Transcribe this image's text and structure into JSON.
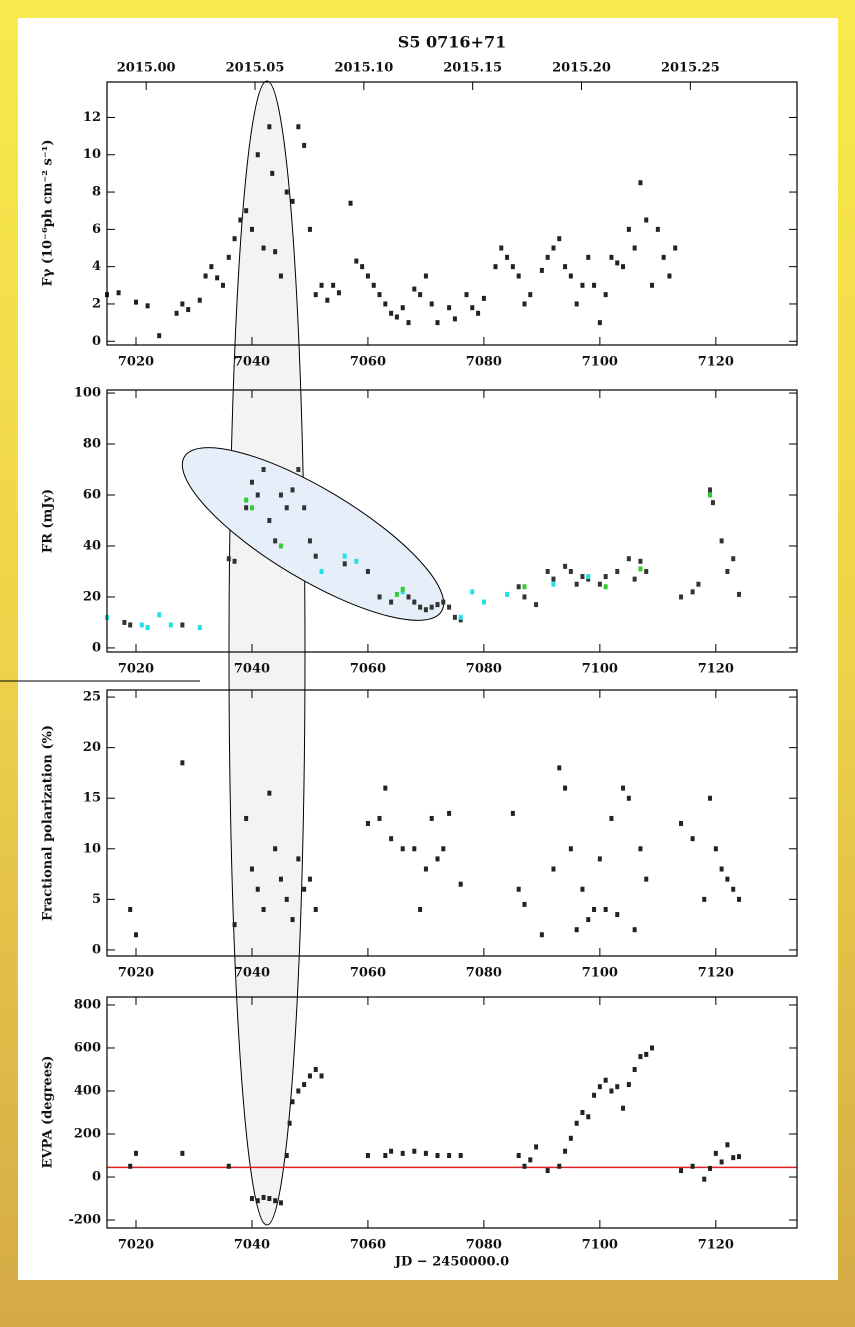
{
  "chart_data": [
    {
      "type": "scatter",
      "title": "S5 0716+71",
      "ylabel": "Fγ (10⁻⁶ph cm⁻² s⁻¹)",
      "xlim": [
        7015,
        7134
      ],
      "ylim": [
        -0.2,
        13.9
      ],
      "xticks": [
        7020,
        7040,
        7060,
        7080,
        7100,
        7120
      ],
      "yticks": [
        0,
        2,
        4,
        6,
        8,
        10,
        12
      ],
      "x2lim": [
        2014.982,
        2015.299
      ],
      "x2ticks": [
        {
          "value": 2015.0,
          "label": "2015.00"
        },
        2015.05,
        {
          "value": 2015.1,
          "label": "2015.10"
        },
        2015.15,
        {
          "value": 2015.2,
          "label": "2015.20"
        },
        2015.25
      ],
      "series": [
        {
          "color": "#222222",
          "x": [
            7015,
            7017,
            7020,
            7022,
            7024,
            7027,
            7028,
            7029,
            7031,
            7032,
            7033,
            7034,
            7035,
            7036,
            7037,
            7038,
            7039,
            7040,
            7041,
            7042,
            7043,
            7043.5,
            7044,
            7045,
            7046,
            7047,
            7048,
            7049,
            7050,
            7051,
            7052,
            7053,
            7054,
            7055,
            7057,
            7058,
            7059,
            7060,
            7061,
            7062,
            7063,
            7064,
            7065,
            7066,
            7067,
            7068,
            7069,
            7070,
            7071,
            7072,
            7074,
            7075,
            7077,
            7078,
            7079,
            7080,
            7082,
            7083,
            7084,
            7085,
            7086,
            7087,
            7088,
            7090,
            7091,
            7092,
            7093,
            7094,
            7095,
            7096,
            7097,
            7098,
            7099,
            7100,
            7101,
            7102,
            7103,
            7104,
            7105,
            7106,
            7107,
            7108,
            7109,
            7110,
            7111,
            7112,
            7113
          ],
          "values": [
            2.5,
            2.6,
            2.1,
            1.9,
            0.3,
            1.5,
            2.0,
            1.7,
            2.2,
            3.5,
            4.0,
            3.4,
            3.0,
            4.5,
            5.5,
            6.5,
            7.0,
            6.0,
            10.0,
            5.0,
            11.5,
            9.0,
            4.8,
            3.5,
            8.0,
            7.5,
            11.5,
            10.5,
            6.0,
            2.5,
            3.0,
            2.2,
            3.0,
            2.6,
            7.4,
            4.3,
            4.0,
            3.5,
            3.0,
            2.5,
            2.0,
            1.5,
            1.3,
            1.8,
            1.0,
            2.8,
            2.5,
            3.5,
            2.0,
            1.0,
            1.8,
            1.2,
            2.5,
            1.8,
            1.5,
            2.3,
            4.0,
            5.0,
            4.5,
            4.0,
            3.5,
            2.0,
            2.5,
            3.8,
            4.5,
            5.0,
            5.5,
            4.0,
            3.5,
            2.0,
            3.0,
            4.5,
            3.0,
            1.0,
            2.5,
            4.5,
            4.2,
            4.0,
            6.0,
            5.0,
            8.5,
            6.5,
            3.0,
            6.0,
            4.5,
            3.5,
            5.0
          ]
        }
      ]
    },
    {
      "type": "scatter",
      "ylabel": "FR (mJy)",
      "xlim": [
        7015,
        7134
      ],
      "ylim": [
        -1.6,
        101.2
      ],
      "xticks": [
        7020,
        7040,
        7060,
        7080,
        7100,
        7120
      ],
      "yticks": [
        0,
        20,
        40,
        60,
        80,
        100
      ],
      "series": [
        {
          "color": "#333333",
          "x": [
            7018,
            7019,
            7028,
            7036,
            7037,
            7039,
            7040,
            7041,
            7042,
            7043,
            7044,
            7045,
            7046,
            7047,
            7048,
            7049,
            7050,
            7051,
            7056,
            7060,
            7062,
            7064,
            7067,
            7068,
            7069,
            7070,
            7071,
            7072,
            7073,
            7074,
            7075,
            7076,
            7086,
            7087,
            7089,
            7091,
            7092,
            7094,
            7095,
            7096,
            7097,
            7098,
            7100,
            7101,
            7103,
            7105,
            7106,
            7107,
            7108,
            7114,
            7116,
            7117,
            7119,
            7119.5,
            7121,
            7122,
            7123,
            7124
          ],
          "values": [
            10,
            9,
            9,
            35,
            34,
            55,
            65,
            60,
            70,
            50,
            42,
            60,
            55,
            62,
            70,
            55,
            42,
            36,
            33,
            30,
            20,
            18,
            20,
            18,
            16,
            15,
            16,
            17,
            18,
            16,
            12,
            11,
            24,
            20,
            17,
            30,
            27,
            32,
            30,
            25,
            28,
            27,
            25,
            28,
            30,
            35,
            27,
            34,
            30,
            20,
            22,
            25,
            62,
            57,
            42,
            30,
            35,
            21
          ]
        },
        {
          "color": "#22e0e8",
          "x": [
            7015,
            7021,
            7022,
            7024,
            7026,
            7031,
            7052,
            7056,
            7058,
            7066,
            7076,
            7078,
            7080,
            7084,
            7092,
            7098
          ],
          "values": [
            12,
            9,
            8,
            13,
            9,
            8,
            30,
            36,
            34,
            22,
            12,
            22,
            18,
            21,
            25,
            28
          ]
        },
        {
          "color": "#33cc33",
          "x": [
            7039,
            7040,
            7045,
            7065,
            7066,
            7087,
            7101,
            7107,
            7119
          ],
          "values": [
            58,
            55,
            40,
            21,
            23,
            24,
            24,
            31,
            60
          ]
        }
      ]
    },
    {
      "type": "scatter",
      "ylabel": "Fractional polarization (%)",
      "xlim": [
        7015,
        7134
      ],
      "ylim": [
        -0.6,
        25.7
      ],
      "xticks": [
        7020,
        7040,
        7060,
        7080,
        7100,
        7120
      ],
      "yticks": [
        0,
        5,
        10,
        15,
        20,
        25
      ],
      "series": [
        {
          "color": "#222222",
          "x": [
            7019,
            7020,
            7028,
            7037,
            7039,
            7040,
            7041,
            7042,
            7043,
            7044,
            7045,
            7046,
            7047,
            7048,
            7049,
            7050,
            7051,
            7060,
            7062,
            7063,
            7064,
            7066,
            7068,
            7069,
            7070,
            7071,
            7072,
            7073,
            7074,
            7076,
            7085,
            7086,
            7087,
            7090,
            7092,
            7093,
            7094,
            7095,
            7096,
            7097,
            7098,
            7099,
            7100,
            7101,
            7102,
            7103,
            7104,
            7105,
            7106,
            7107,
            7108,
            7114,
            7116,
            7118,
            7119,
            7120,
            7121,
            7122,
            7123,
            7124
          ],
          "values": [
            4,
            1.5,
            18.5,
            2.5,
            13,
            8,
            6,
            4,
            15.5,
            10,
            7,
            5,
            3,
            9,
            6,
            7,
            4,
            12.5,
            13,
            16,
            11,
            10,
            10,
            4,
            8,
            13,
            9,
            10,
            13.5,
            6.5,
            13.5,
            6,
            4.5,
            1.5,
            8,
            18,
            16,
            10,
            2,
            6,
            3,
            4,
            9,
            4,
            13,
            3.5,
            16,
            15,
            2,
            10,
            7,
            12.5,
            11,
            5,
            15,
            10,
            8,
            7,
            6,
            5
          ]
        }
      ]
    },
    {
      "type": "scatter",
      "ylabel": "EVPA (degrees)",
      "xlabel": "JD − 2450000.0",
      "xlim": [
        7015,
        7134
      ],
      "ylim": [
        -237,
        837
      ],
      "xticks": [
        7020,
        7040,
        7060,
        7080,
        7100,
        7120
      ],
      "yticks": [
        -200,
        0,
        200,
        400,
        600,
        800
      ],
      "hline": {
        "value": 45,
        "color": "#e02020"
      },
      "series": [
        {
          "color": "#222222",
          "x": [
            7019,
            7020,
            7028,
            7036,
            7040,
            7041,
            7042,
            7043,
            7044,
            7045,
            7046,
            7046.5,
            7047,
            7048,
            7049,
            7050,
            7051,
            7052,
            7060,
            7063,
            7064,
            7066,
            7068,
            7070,
            7072,
            7074,
            7076,
            7086,
            7087,
            7088,
            7089,
            7091,
            7093,
            7094,
            7095,
            7096,
            7097,
            7098,
            7099,
            7100,
            7101,
            7102,
            7103,
            7104,
            7105,
            7106,
            7107,
            7108,
            7109,
            7114,
            7116,
            7118,
            7119,
            7120,
            7121,
            7122,
            7123,
            7124
          ],
          "values": [
            50,
            110,
            110,
            50,
            -100,
            -110,
            -95,
            -100,
            -110,
            -120,
            100,
            250,
            350,
            400,
            430,
            470,
            500,
            470,
            100,
            100,
            120,
            110,
            120,
            110,
            100,
            100,
            100,
            100,
            50,
            80,
            140,
            30,
            50,
            120,
            180,
            250,
            300,
            280,
            380,
            420,
            450,
            400,
            420,
            320,
            430,
            500,
            560,
            570,
            600,
            30,
            50,
            -10,
            40,
            110,
            70,
            150,
            90,
            95
          ]
        }
      ]
    }
  ]
}
